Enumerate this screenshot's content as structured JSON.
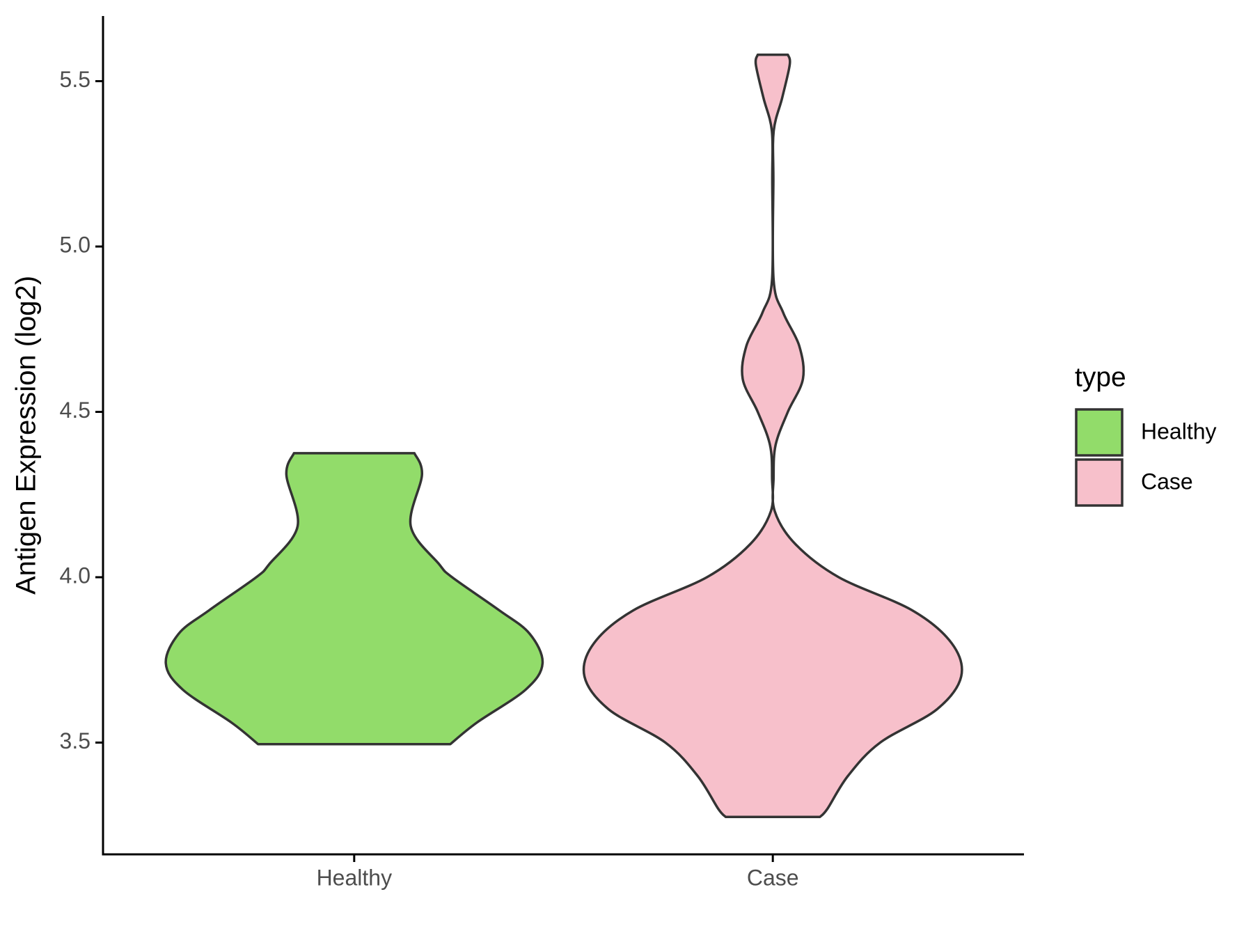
{
  "chart_data": {
    "type": "violin",
    "y_label": "Antigen Expression (log2)",
    "categories": [
      "Healthy",
      "Case"
    ],
    "legend_title": "type",
    "ylim": [
      3.162,
      5.697
    ],
    "yticks": [
      3.5,
      {
        "value": 4,
        "label": "4.0"
      },
      4.5,
      {
        "value": 5,
        "label": "5.0"
      },
      5.5
    ],
    "series": [
      {
        "name": "Healthy",
        "color": "#92dc6a",
        "y": [
          4.375,
          4.31,
          4.155,
          4.04,
          4.0,
          3.9,
          3.83,
          3.74,
          3.66,
          3.56,
          3.495
        ],
        "width": [
          0.32,
          0.36,
          0.3,
          0.45,
          0.52,
          0.77,
          0.93,
          1.0,
          0.91,
          0.65,
          0.51
        ]
      },
      {
        "name": "Case",
        "color": "#f7c0cb",
        "y": [
          5.58,
          5.55,
          5.45,
          5.35,
          5.2,
          4.9,
          4.8,
          4.7,
          4.6,
          4.5,
          4.4,
          4.3,
          4.2,
          4.1,
          4.0,
          3.9,
          3.8,
          3.7,
          3.6,
          3.5,
          3.4,
          3.3,
          3.275
        ],
        "width": [
          0.08,
          0.09,
          0.05,
          0.005,
          0.003,
          0.004,
          0.055,
          0.14,
          0.16,
          0.08,
          0.015,
          0.004,
          0.01,
          0.12,
          0.35,
          0.74,
          0.95,
          1.0,
          0.87,
          0.57,
          0.4,
          0.29,
          0.25
        ]
      }
    ]
  }
}
